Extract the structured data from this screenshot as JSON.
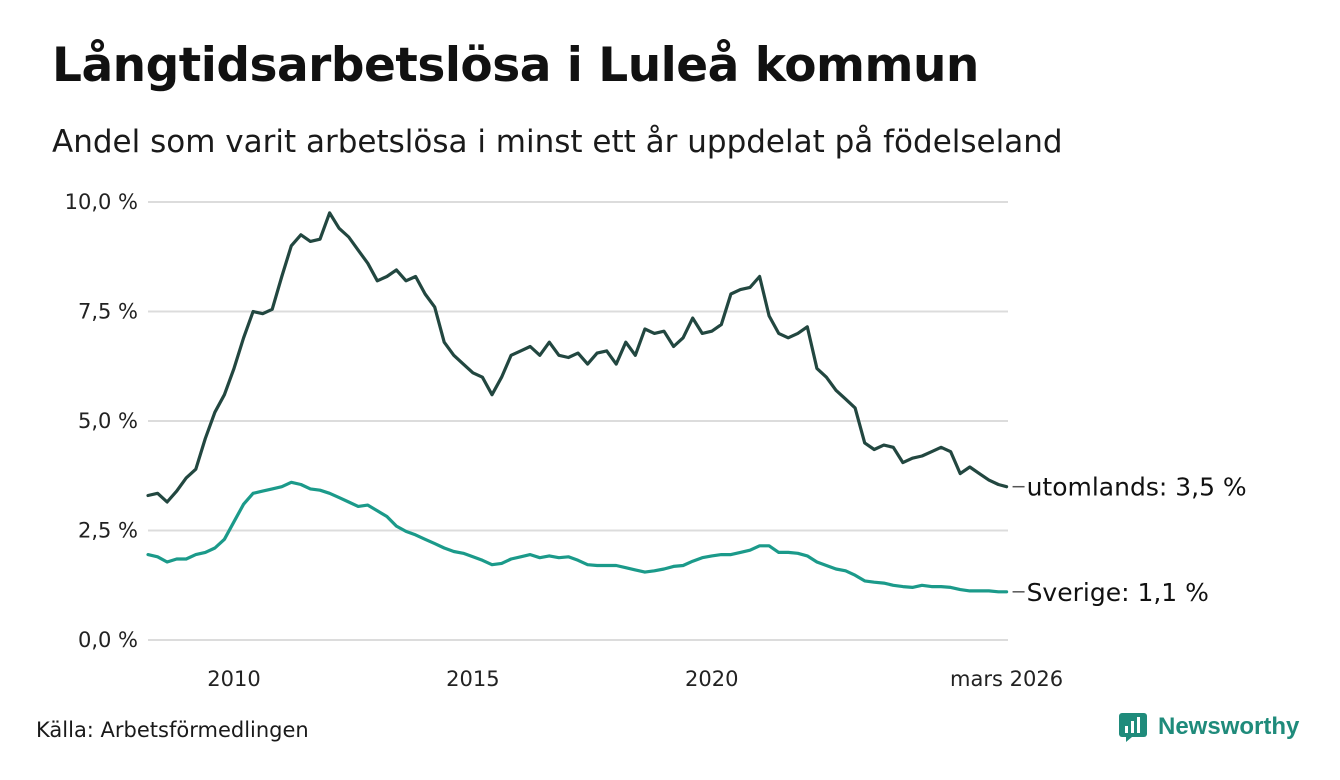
{
  "header": {
    "title": "Långtidsarbetslösa i Luleå kommun",
    "subtitle": "Andel som varit arbetslösa i minst ett år uppdelat på födelseland"
  },
  "footer": {
    "source": "Källa: Arbetsförmedlingen",
    "brand": "Newsworthy"
  },
  "colors": {
    "utomlands": "#224740",
    "sverige": "#1b9a8a",
    "grid": "#dcdcdc",
    "brand": "#1f8b7b"
  },
  "chart_data": {
    "type": "line",
    "title": "Långtidsarbetslösa i Luleå kommun",
    "xlabel": "",
    "ylabel": "",
    "ylim": [
      0,
      10
    ],
    "xlim": [
      2008.2,
      2026.2
    ],
    "y_ticks": [
      {
        "value": 0,
        "label": "0,0 %"
      },
      {
        "value": 2.5,
        "label": "2,5 %"
      },
      {
        "value": 5,
        "label": "5,0 %"
      },
      {
        "value": 7.5,
        "label": "7,5 %"
      },
      {
        "value": 10,
        "label": "10,0 %"
      }
    ],
    "x_ticks": [
      {
        "value": 2010,
        "label": "2010"
      },
      {
        "value": 2015,
        "label": "2015"
      },
      {
        "value": 2020,
        "label": "2020"
      },
      {
        "value": 2026.17,
        "label": "mars 2026"
      }
    ],
    "series": [
      {
        "name": "utomlands",
        "end_label": "utomlands: 3,5 %",
        "x": [
          2008.2,
          2008.4,
          2008.6,
          2008.8,
          2009.0,
          2009.2,
          2009.4,
          2009.6,
          2009.8,
          2010.0,
          2010.2,
          2010.4,
          2010.6,
          2010.8,
          2011.0,
          2011.2,
          2011.4,
          2011.6,
          2011.8,
          2012.0,
          2012.2,
          2012.4,
          2012.6,
          2012.8,
          2013.0,
          2013.2,
          2013.4,
          2013.6,
          2013.8,
          2014.0,
          2014.2,
          2014.4,
          2014.6,
          2014.8,
          2015.0,
          2015.2,
          2015.4,
          2015.6,
          2015.8,
          2016.0,
          2016.2,
          2016.4,
          2016.6,
          2016.8,
          2017.0,
          2017.2,
          2017.4,
          2017.6,
          2017.8,
          2018.0,
          2018.2,
          2018.4,
          2018.6,
          2018.8,
          2019.0,
          2019.2,
          2019.4,
          2019.6,
          2019.8,
          2020.0,
          2020.2,
          2020.4,
          2020.6,
          2020.8,
          2021.0,
          2021.2,
          2021.4,
          2021.6,
          2021.8,
          2022.0,
          2022.2,
          2022.4,
          2022.6,
          2022.8,
          2023.0,
          2023.2,
          2023.4,
          2023.6,
          2023.8,
          2024.0,
          2024.2,
          2024.4,
          2024.6,
          2024.8,
          2025.0,
          2025.2,
          2025.4,
          2025.6,
          2025.8,
          2026.0,
          2026.17
        ],
        "values": [
          3.3,
          3.35,
          3.15,
          3.4,
          3.7,
          3.9,
          4.6,
          5.2,
          5.6,
          6.2,
          6.9,
          7.5,
          7.45,
          7.55,
          8.3,
          9.0,
          9.25,
          9.1,
          9.15,
          9.75,
          9.4,
          9.2,
          8.9,
          8.6,
          8.2,
          8.3,
          8.45,
          8.2,
          8.3,
          7.9,
          7.6,
          6.8,
          6.5,
          6.3,
          6.1,
          6.0,
          5.6,
          6.0,
          6.5,
          6.6,
          6.7,
          6.5,
          6.8,
          6.5,
          6.45,
          6.55,
          6.3,
          6.55,
          6.6,
          6.3,
          6.8,
          6.5,
          7.1,
          7.0,
          7.05,
          6.7,
          6.9,
          7.35,
          7.0,
          7.05,
          7.2,
          7.9,
          8.0,
          8.05,
          8.3,
          7.4,
          7.0,
          6.9,
          7.0,
          7.15,
          6.2,
          6.0,
          5.7,
          5.5,
          5.3,
          4.5,
          4.35,
          4.45,
          4.4,
          4.05,
          4.15,
          4.2,
          4.3,
          4.4,
          4.3,
          3.8,
          3.95,
          3.8,
          3.65,
          3.55,
          3.5
        ]
      },
      {
        "name": "Sverige",
        "end_label": "Sverige: 1,1 %",
        "x": [
          2008.2,
          2008.4,
          2008.6,
          2008.8,
          2009.0,
          2009.2,
          2009.4,
          2009.6,
          2009.8,
          2010.0,
          2010.2,
          2010.4,
          2010.6,
          2010.8,
          2011.0,
          2011.2,
          2011.4,
          2011.6,
          2011.8,
          2012.0,
          2012.2,
          2012.4,
          2012.6,
          2012.8,
          2013.0,
          2013.2,
          2013.4,
          2013.6,
          2013.8,
          2014.0,
          2014.2,
          2014.4,
          2014.6,
          2014.8,
          2015.0,
          2015.2,
          2015.4,
          2015.6,
          2015.8,
          2016.0,
          2016.2,
          2016.4,
          2016.6,
          2016.8,
          2017.0,
          2017.2,
          2017.4,
          2017.6,
          2017.8,
          2018.0,
          2018.2,
          2018.4,
          2018.6,
          2018.8,
          2019.0,
          2019.2,
          2019.4,
          2019.6,
          2019.8,
          2020.0,
          2020.2,
          2020.4,
          2020.6,
          2020.8,
          2021.0,
          2021.2,
          2021.4,
          2021.6,
          2021.8,
          2022.0,
          2022.2,
          2022.4,
          2022.6,
          2022.8,
          2023.0,
          2023.2,
          2023.4,
          2023.6,
          2023.8,
          2024.0,
          2024.2,
          2024.4,
          2024.6,
          2024.8,
          2025.0,
          2025.2,
          2025.4,
          2025.6,
          2025.8,
          2026.0,
          2026.17
        ],
        "values": [
          1.95,
          1.9,
          1.78,
          1.85,
          1.85,
          1.95,
          2.0,
          2.1,
          2.3,
          2.7,
          3.1,
          3.35,
          3.4,
          3.45,
          3.5,
          3.6,
          3.55,
          3.45,
          3.42,
          3.35,
          3.25,
          3.15,
          3.05,
          3.08,
          2.95,
          2.82,
          2.6,
          2.48,
          2.4,
          2.3,
          2.2,
          2.1,
          2.02,
          1.98,
          1.9,
          1.82,
          1.72,
          1.75,
          1.85,
          1.9,
          1.95,
          1.88,
          1.92,
          1.88,
          1.9,
          1.82,
          1.72,
          1.7,
          1.7,
          1.7,
          1.65,
          1.6,
          1.55,
          1.58,
          1.62,
          1.68,
          1.7,
          1.8,
          1.88,
          1.92,
          1.95,
          1.95,
          2.0,
          2.05,
          2.15,
          2.15,
          2.0,
          2.0,
          1.98,
          1.92,
          1.78,
          1.7,
          1.62,
          1.58,
          1.48,
          1.35,
          1.32,
          1.3,
          1.25,
          1.22,
          1.2,
          1.25,
          1.22,
          1.22,
          1.2,
          1.15,
          1.12,
          1.12,
          1.12,
          1.1,
          1.1
        ]
      }
    ]
  }
}
